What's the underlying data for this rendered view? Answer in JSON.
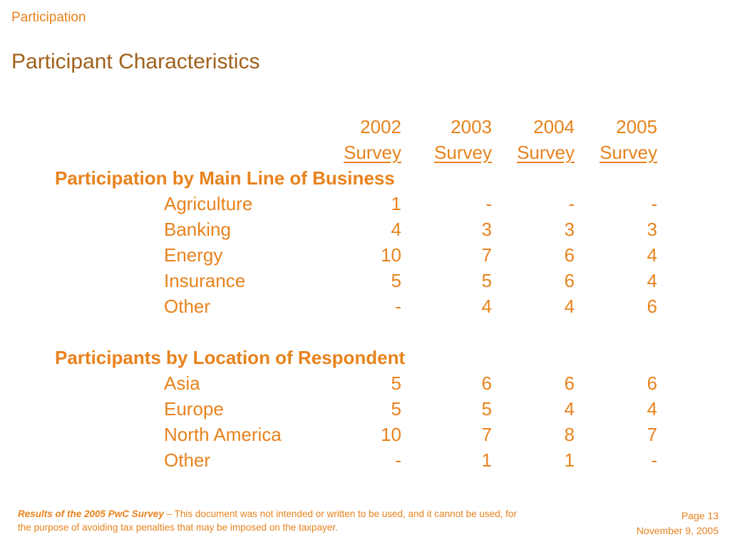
{
  "section_label": "Participation",
  "title": "Participant Characteristics",
  "table": {
    "year_headers": [
      "2002",
      "2003",
      "2004",
      "2005"
    ],
    "survey_headers": [
      "Survey",
      "Survey",
      "Survey",
      "Survey"
    ],
    "groups": [
      {
        "heading": "Participation by Main Line of Business",
        "rows": [
          {
            "label": "Agriculture",
            "values": [
              "1",
              "-",
              "-",
              "-"
            ]
          },
          {
            "label": "Banking",
            "values": [
              "4",
              "3",
              "3",
              "3"
            ]
          },
          {
            "label": "Energy",
            "values": [
              "10",
              "7",
              "6",
              "4"
            ]
          },
          {
            "label": "Insurance",
            "values": [
              "5",
              "5",
              "6",
              "4"
            ]
          },
          {
            "label": "Other",
            "values": [
              "-",
              "4",
              "4",
              "6"
            ]
          }
        ]
      },
      {
        "heading": "Participants by Location of Respondent",
        "rows": [
          {
            "label": "Asia",
            "values": [
              "5",
              "6",
              "6",
              "6"
            ]
          },
          {
            "label": "Europe",
            "values": [
              "5",
              "5",
              "4",
              "4"
            ]
          },
          {
            "label": "North America",
            "values": [
              "10",
              "7",
              "8",
              "7"
            ]
          },
          {
            "label": "Other",
            "values": [
              "-",
              "1",
              "1",
              "-"
            ]
          }
        ]
      }
    ]
  },
  "footer": {
    "doc_title": "Results of the 2005 PwC Survey",
    "disclaimer": " – This document was not intended or written to be used, and it cannot be used, for the purpose of avoiding tax penalties that may be imposed on the taxpayer.",
    "page": "Page 13",
    "date": "November 9, 2005"
  },
  "colors": {
    "accent": "#e8821c",
    "title": "#a0601a"
  }
}
